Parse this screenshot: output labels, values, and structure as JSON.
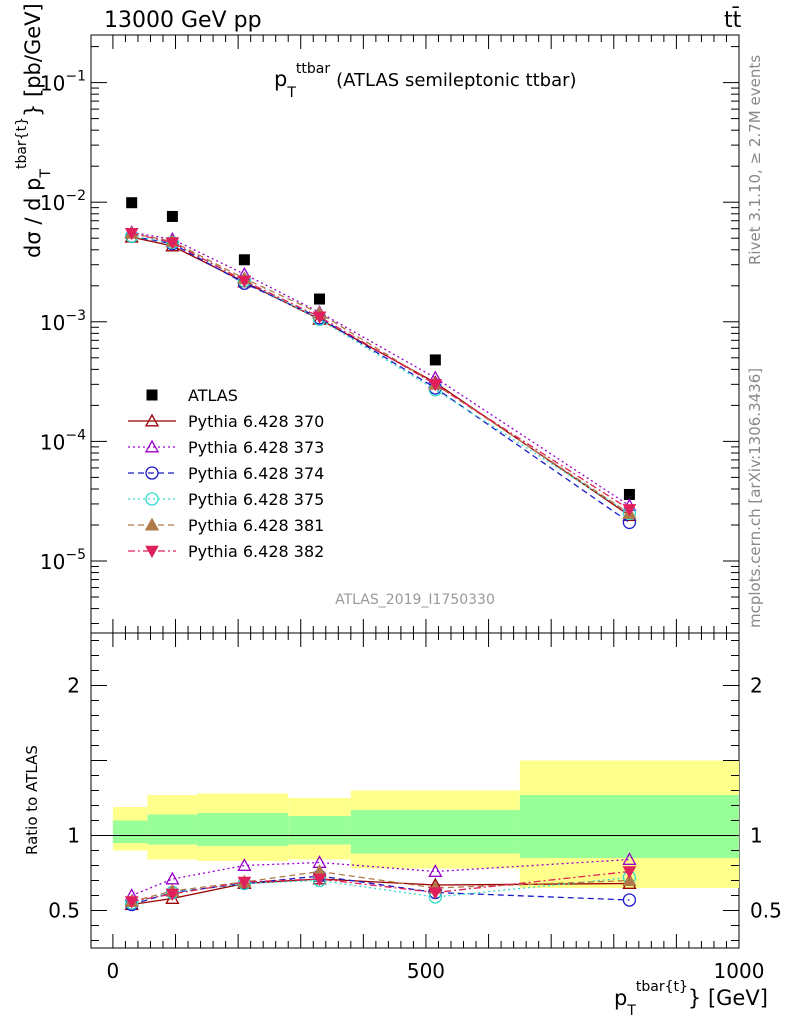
{
  "header": {
    "left_label": "13000 GeV pp",
    "right_label": "tt̄"
  },
  "side_text": {
    "rivet": "Rivet 3.1.10, ≥ 2.7M events",
    "mcplots": "mcplots.cern.ch [arXiv:1306.3436]"
  },
  "chart_data": [
    {
      "type": "scatter",
      "panel": "main",
      "title_main": "p",
      "title_sup": "ttbar",
      "title_sub": "T",
      "title_rest": "(ATLAS semileptonic ttbar)",
      "ylabel_prefix": "dσ / d p",
      "ylabel_sup": "tbar{t}",
      "ylabel_sub": "T",
      "ylabel_suffix": "} [pb/GeV]",
      "yscale": "log",
      "ylim": [
        2.5e-06,
        0.25
      ],
      "xlim": [
        -35,
        1000
      ],
      "ytick_labels": [
        {
          "base": "10",
          "exp": "−1",
          "value": 0.1
        },
        {
          "base": "10",
          "exp": "−2",
          "value": 0.01
        },
        {
          "base": "10",
          "exp": "−3",
          "value": 0.001
        },
        {
          "base": "10",
          "exp": "−4",
          "value": 0.0001
        },
        {
          "base": "10",
          "exp": "−5",
          "value": 1e-05
        }
      ],
      "watermark": "ATLAS_2019_I1750330",
      "legend_position": "bottom-left",
      "x": [
        30,
        95,
        210,
        330,
        515,
        825
      ],
      "series": [
        {
          "name": "ATLAS",
          "values": [
            0.0099,
            0.0076,
            0.0033,
            0.00155,
            0.00048,
            3.6e-05
          ],
          "color": "#000000",
          "marker": "square-filled",
          "line": "none"
        },
        {
          "name": "Pythia 6.428 370",
          "values": [
            0.0051,
            0.0043,
            0.00215,
            0.00105,
            0.00031,
            2.4e-05
          ],
          "color": "#990000",
          "marker": "triangle-up-open",
          "line": "solid"
        },
        {
          "name": "Pythia 6.428 373",
          "values": [
            0.0056,
            0.0049,
            0.0025,
            0.0012,
            0.00034,
            2.9e-05
          ],
          "color": "#9900cc",
          "marker": "triangle-up-open",
          "line": "dotted"
        },
        {
          "name": "Pythia 6.428 374",
          "values": [
            0.0052,
            0.0045,
            0.0021,
            0.00108,
            0.00028,
            2.1e-05
          ],
          "color": "#1a1acc",
          "marker": "circle-open",
          "line": "dashed"
        },
        {
          "name": "Pythia 6.428 375",
          "values": [
            0.0052,
            0.0046,
            0.0022,
            0.00105,
            0.00027,
            2.5e-05
          ],
          "color": "#33ddcc",
          "marker": "circle-open",
          "line": "dotted"
        },
        {
          "name": "Pythia 6.428 381",
          "values": [
            0.0055,
            0.0047,
            0.0023,
            0.00118,
            0.0003,
            2.5e-05
          ],
          "color": "#b07a48",
          "marker": "triangle-up-filled",
          "line": "dashed"
        },
        {
          "name": "Pythia 6.428 382",
          "values": [
            0.0055,
            0.0046,
            0.0022,
            0.0011,
            0.0003,
            2.7e-05
          ],
          "color": "#e0205a",
          "marker": "triangle-down-filled",
          "line": "dashdot"
        }
      ]
    },
    {
      "type": "scatter",
      "panel": "ratio",
      "ylabel": "Ratio to ATLAS",
      "xlabel_prefix": "p",
      "xlabel_sup": "tbar{t}",
      "xlabel_sub": "T",
      "xlabel_suffix": "} [GeV]",
      "ylim": [
        0.25,
        2.35
      ],
      "xlim": [
        -35,
        1000
      ],
      "xtick_labels": [
        "0",
        "500",
        "1000"
      ],
      "ytick_labels": [
        "0.5",
        "1",
        "2"
      ],
      "bands": [
        {
          "x0": 0,
          "x1": 55,
          "stat_lo": 0.95,
          "stat_hi": 1.1,
          "tot_lo": 0.9,
          "tot_hi": 1.19
        },
        {
          "x0": 55,
          "x1": 135,
          "stat_lo": 0.94,
          "stat_hi": 1.14,
          "tot_lo": 0.84,
          "tot_hi": 1.27
        },
        {
          "x0": 135,
          "x1": 280,
          "stat_lo": 0.93,
          "stat_hi": 1.15,
          "tot_lo": 0.83,
          "tot_hi": 1.28
        },
        {
          "x0": 280,
          "x1": 380,
          "stat_lo": 0.94,
          "stat_hi": 1.13,
          "tot_lo": 0.84,
          "tot_hi": 1.25
        },
        {
          "x0": 380,
          "x1": 650,
          "stat_lo": 0.88,
          "stat_hi": 1.17,
          "tot_lo": 0.78,
          "tot_hi": 1.3
        },
        {
          "x0": 650,
          "x1": 1000,
          "stat_lo": 0.85,
          "stat_hi": 1.27,
          "tot_lo": 0.65,
          "tot_hi": 1.5
        }
      ],
      "x": [
        30,
        95,
        210,
        330,
        515,
        825
      ],
      "series": [
        {
          "name": "Pythia 6.428 370",
          "values": [
            0.54,
            0.58,
            0.68,
            0.71,
            0.67,
            0.68
          ],
          "color": "#990000",
          "marker": "triangle-up-open",
          "line": "solid"
        },
        {
          "name": "Pythia 6.428 373",
          "values": [
            0.6,
            0.71,
            0.8,
            0.82,
            0.76,
            0.84
          ],
          "color": "#9900cc",
          "marker": "triangle-up-open",
          "line": "dotted"
        },
        {
          "name": "Pythia 6.428 374",
          "values": [
            0.54,
            0.62,
            0.68,
            0.73,
            0.62,
            0.57
          ],
          "color": "#1a1acc",
          "marker": "circle-open",
          "line": "dashed"
        },
        {
          "name": "Pythia 6.428 375",
          "values": [
            0.55,
            0.62,
            0.68,
            0.7,
            0.59,
            0.72
          ],
          "color": "#33ddcc",
          "marker": "circle-open",
          "line": "dotted"
        },
        {
          "name": "Pythia 6.428 381",
          "values": [
            0.56,
            0.63,
            0.69,
            0.76,
            0.65,
            0.7
          ],
          "color": "#b07a48",
          "marker": "triangle-up-filled",
          "line": "dashed"
        },
        {
          "name": "Pythia 6.428 382",
          "values": [
            0.56,
            0.61,
            0.69,
            0.71,
            0.62,
            0.76
          ],
          "color": "#e0205a",
          "marker": "triangle-down-filled",
          "line": "dashdot"
        }
      ]
    }
  ]
}
